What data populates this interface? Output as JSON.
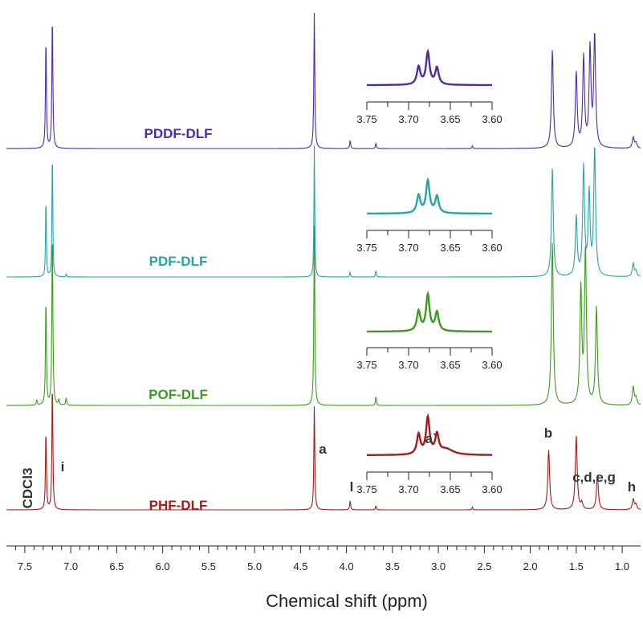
{
  "chart_data": {
    "type": "line",
    "xlabel": "Chemical shift (ppm)",
    "x_reversed": true,
    "x_range": [
      0.8,
      7.7
    ],
    "x_ticks": [
      "7.5",
      "7.0",
      "6.5",
      "6.0",
      "5.5",
      "5.0",
      "4.5",
      "4.0",
      "3.5",
      "3.0",
      "2.5",
      "2.0",
      "1.5",
      "1.0"
    ],
    "x_tick_values": [
      7.5,
      7.0,
      6.5,
      6.0,
      5.5,
      5.0,
      4.5,
      4.0,
      3.5,
      3.0,
      2.5,
      2.0,
      1.5,
      1.0
    ],
    "grid": false,
    "series": [
      {
        "name": "PDDF-DLF",
        "color": "#4b2ea6",
        "peaks": [
          [
            7.27,
            0.82
          ],
          [
            7.2,
            1.0
          ],
          [
            4.35,
            1.0
          ],
          [
            3.96,
            0.06
          ],
          [
            3.68,
            0.04
          ],
          [
            2.63,
            0.02
          ],
          [
            1.76,
            0.72
          ],
          [
            1.5,
            0.55
          ],
          [
            1.42,
            0.66
          ],
          [
            1.35,
            0.72
          ],
          [
            1.3,
            0.82
          ],
          [
            0.88,
            0.08
          ],
          [
            0.85,
            0.04
          ]
        ]
      },
      {
        "name": "PDF-DLF",
        "color": "#2aa3a3",
        "peaks": [
          [
            7.27,
            0.62
          ],
          [
            7.2,
            1.0
          ],
          [
            7.05,
            0.02
          ],
          [
            4.35,
            1.0
          ],
          [
            3.96,
            0.04
          ],
          [
            3.68,
            0.05
          ],
          [
            1.76,
            0.82
          ],
          [
            1.5,
            0.45
          ],
          [
            1.42,
            0.82
          ],
          [
            1.36,
            0.62
          ],
          [
            1.3,
            0.97
          ],
          [
            0.88,
            0.1
          ],
          [
            0.85,
            0.04
          ]
        ]
      },
      {
        "name": "POF-DLF",
        "color": "#3d9a1e",
        "peaks": [
          [
            7.37,
            0.03
          ],
          [
            7.27,
            0.6
          ],
          [
            7.2,
            1.0
          ],
          [
            7.13,
            0.03
          ],
          [
            7.05,
            0.04
          ],
          [
            4.35,
            1.0
          ],
          [
            3.68,
            0.05
          ],
          [
            1.76,
            0.9
          ],
          [
            1.45,
            0.64
          ],
          [
            1.4,
            0.86
          ],
          [
            1.28,
            0.54
          ],
          [
            0.88,
            0.1
          ],
          [
            0.85,
            0.04
          ]
        ]
      },
      {
        "name": "PHF-DLF",
        "color": "#a31c1c",
        "peaks": [
          [
            7.27,
            0.62
          ],
          [
            7.2,
            1.0
          ],
          [
            4.35,
            0.8
          ],
          [
            3.96,
            0.07
          ],
          [
            3.68,
            0.03
          ],
          [
            2.63,
            0.02
          ],
          [
            1.8,
            0.46
          ],
          [
            1.5,
            0.57
          ],
          [
            1.44,
            0.05
          ],
          [
            1.27,
            0.27
          ],
          [
            0.88,
            0.08
          ],
          [
            0.85,
            0.04
          ]
        ]
      }
    ],
    "insets": {
      "x_ticks": [
        "3.75",
        "3.70",
        "3.65",
        "3.60"
      ],
      "x_tick_values": [
        3.75,
        3.7,
        3.65,
        3.6
      ],
      "x_range": [
        3.6,
        3.75
      ],
      "peaks": [
        [
          3.688,
          0.55
        ],
        [
          3.677,
          1.0
        ],
        [
          3.666,
          0.52
        ]
      ]
    },
    "annotations": [
      {
        "label": "CDCl3",
        "x": 7.27
      },
      {
        "label": "i",
        "x": 7.2
      },
      {
        "label": "a",
        "x": 4.35
      },
      {
        "label": "l",
        "x": 3.96
      },
      {
        "label": "a`",
        "x": 3.68
      },
      {
        "label": "b",
        "x": 1.8
      },
      {
        "label": "c,d,e,g",
        "x": 1.27
      },
      {
        "label": "h",
        "x": 0.88
      }
    ]
  }
}
